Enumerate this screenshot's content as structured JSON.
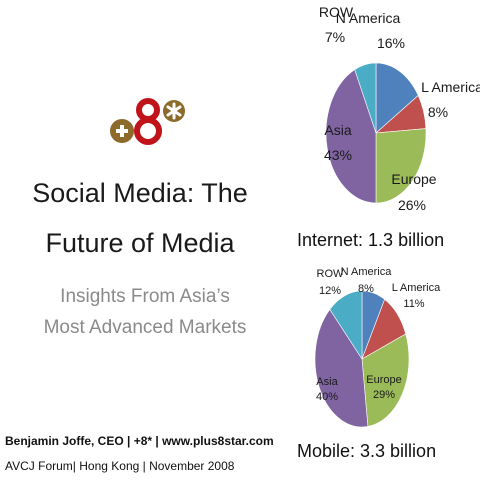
{
  "brand": {
    "logo_text": "+8*",
    "colors": {
      "plus": "#8c6a2a",
      "eight": "#c0141a",
      "star": "#8c6a2a"
    }
  },
  "slide": {
    "title_line1": "Social Media: The",
    "title_line2": "Future of Media",
    "subtitle_line1": "Insights From Asia’s",
    "subtitle_line2": "Most Advanced Markets",
    "author": "Benjamin Joffe, CEO | +8* | www.plus8star.com",
    "event": "AVCJ Forum| Hong Kong | November 2008"
  },
  "chart_data": [
    {
      "type": "pie",
      "title": "",
      "caption": "Internet: 1.3 billion",
      "slices": [
        {
          "label": "N America",
          "value": 16,
          "value_label": "16%",
          "color": "#4f81bd"
        },
        {
          "label": "L America",
          "value": 8,
          "value_label": "8%",
          "color": "#c0504d"
        },
        {
          "label": "Europe",
          "value": 26,
          "value_label": "26%",
          "color": "#9bbb59"
        },
        {
          "label": "Asia",
          "value": 43,
          "value_label": "43%",
          "color": "#8064a2"
        },
        {
          "label": "ROW",
          "value": 7,
          "value_label": "7%",
          "color": "#4bacc6"
        }
      ]
    },
    {
      "type": "pie",
      "title": "",
      "caption": "Mobile: 3.3 billion",
      "slices": [
        {
          "label": "N America",
          "value": 8,
          "value_label": "8%",
          "color": "#4f81bd"
        },
        {
          "label": "L America",
          "value": 11,
          "value_label": "11%",
          "color": "#c0504d"
        },
        {
          "label": "Europe",
          "value": 29,
          "value_label": "29%",
          "color": "#9bbb59"
        },
        {
          "label": "Asia",
          "value": 40,
          "value_label": "40%",
          "color": "#8064a2"
        },
        {
          "label": "ROW",
          "value": 12,
          "value_label": "12%",
          "color": "#4bacc6"
        }
      ]
    }
  ]
}
